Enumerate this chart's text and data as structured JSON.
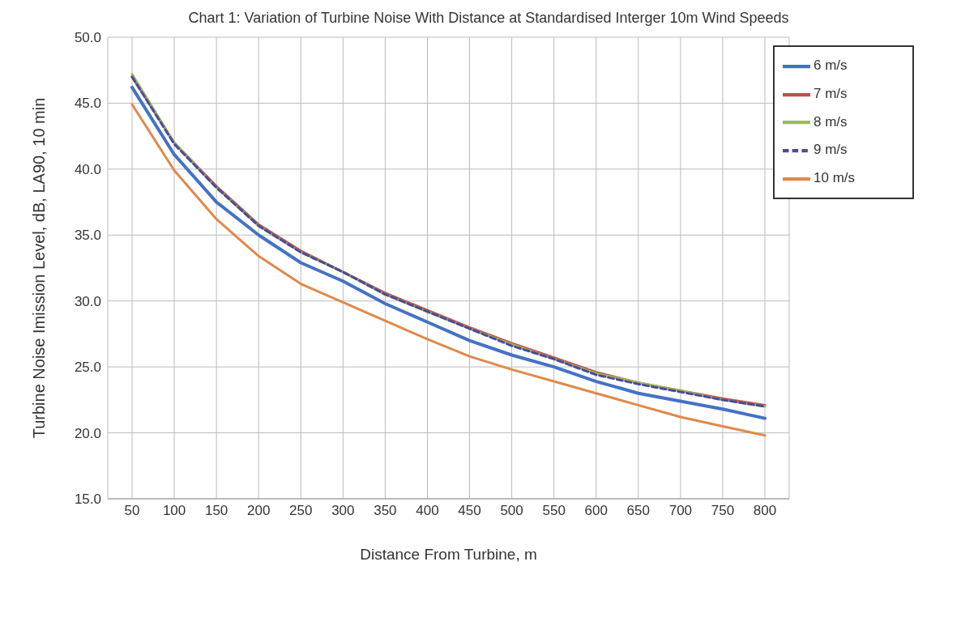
{
  "chart_data": {
    "type": "line",
    "title": "Chart 1: Variation of Turbine Noise With Distance at Standardised Interger 10m Wind Speeds",
    "xlabel": "Distance From Turbine, m",
    "ylabel": "Turbine Noise Imission Level, dB, LA90, 10 min",
    "categories": [
      "50",
      "100",
      "150",
      "200",
      "250",
      "300",
      "350",
      "400",
      "450",
      "500",
      "550",
      "600",
      "650",
      "700",
      "750",
      "800"
    ],
    "series": [
      {
        "name": "6 m/s",
        "color": "#4472c4",
        "values": [
          46.2,
          41.1,
          37.5,
          35.0,
          32.9,
          31.5,
          29.8,
          28.4,
          27.0,
          25.9,
          25.0,
          23.9,
          23.0,
          22.4,
          21.8,
          21.1
        ]
      },
      {
        "name": "7 m/s",
        "color": "#c0504d",
        "values": [
          47.0,
          42.0,
          38.7,
          35.8,
          33.8,
          32.2,
          30.6,
          29.3,
          28.0,
          26.8,
          25.7,
          24.6,
          23.8,
          23.2,
          22.6,
          22.1
        ]
      },
      {
        "name": "8 m/s",
        "color": "#9bbb59",
        "values": [
          47.2,
          42.0,
          38.6,
          35.7,
          33.7,
          32.2,
          30.5,
          29.2,
          27.9,
          26.7,
          25.6,
          24.5,
          23.8,
          23.2,
          22.5,
          22.0
        ]
      },
      {
        "name": "9 m/s",
        "color": "#4b4a9a",
        "line_style": "dashed",
        "values": [
          47.0,
          41.9,
          38.6,
          35.7,
          33.7,
          32.2,
          30.5,
          29.2,
          27.9,
          26.6,
          25.6,
          24.4,
          23.7,
          23.1,
          22.5,
          22.0
        ]
      },
      {
        "name": "10 m/s",
        "color": "#e0894a",
        "values": [
          44.9,
          39.9,
          36.2,
          33.4,
          31.3,
          29.9,
          28.5,
          27.1,
          25.8,
          24.8,
          23.9,
          23.0,
          22.1,
          21.2,
          20.5,
          19.8
        ]
      }
    ],
    "ylim": [
      15,
      50
    ],
    "yticks": [
      {
        "value": 15,
        "label": "15.0"
      },
      {
        "value": 20,
        "label": "20.0"
      },
      {
        "value": 25,
        "label": "25.0"
      },
      {
        "value": 30,
        "label": "30.0"
      },
      {
        "value": 35,
        "label": "35.0"
      },
      {
        "value": 40,
        "label": "40.0"
      },
      {
        "value": 45,
        "label": "45.0"
      },
      {
        "value": 50,
        "label": "50.0"
      }
    ],
    "grid": true,
    "legend": "top right",
    "marker": "none",
    "line_style": "solid"
  }
}
